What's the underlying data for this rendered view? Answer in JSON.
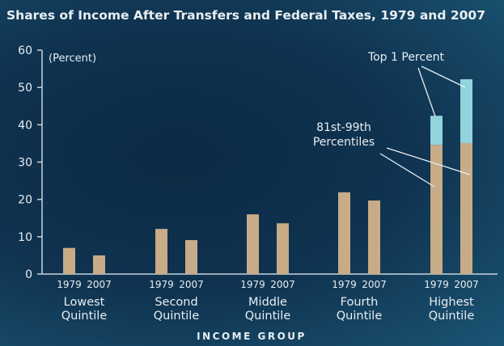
{
  "chart_data": {
    "type": "bar",
    "stacked": true,
    "title": "Shares of Income After Transfers and Federal Taxes, 1979 and 2007",
    "ylabel": "(Percent)",
    "xlabel": "INCOME GROUP",
    "ylim": [
      0,
      60
    ],
    "yticks": [
      "0",
      "10",
      "20",
      "30",
      "40",
      "50",
      "60"
    ],
    "grid": false,
    "groups": [
      {
        "label": [
          "Lowest",
          "Quintile"
        ],
        "bars": [
          {
            "year": "1979",
            "base": 7.0,
            "top": 0
          },
          {
            "year": "2007",
            "base": 5.0,
            "top": 0
          }
        ]
      },
      {
        "label": [
          "Second",
          "Quintile"
        ],
        "bars": [
          {
            "year": "1979",
            "base": 12.1,
            "top": 0
          },
          {
            "year": "2007",
            "base": 9.1,
            "top": 0
          }
        ]
      },
      {
        "label": [
          "Middle",
          "Quintile"
        ],
        "bars": [
          {
            "year": "1979",
            "base": 16.0,
            "top": 0
          },
          {
            "year": "2007",
            "base": 13.6,
            "top": 0
          }
        ]
      },
      {
        "label": [
          "Fourth",
          "Quintile"
        ],
        "bars": [
          {
            "year": "1979",
            "base": 21.9,
            "top": 0
          },
          {
            "year": "2007",
            "base": 19.7,
            "top": 0
          }
        ]
      },
      {
        "label": [
          "Highest",
          "Quintile"
        ],
        "bars": [
          {
            "year": "1979",
            "base": 34.6,
            "top": 7.8
          },
          {
            "year": "2007",
            "base": 35.1,
            "top": 17.1
          }
        ]
      }
    ],
    "annotations": {
      "top1": "Top 1 Percent",
      "p81_99": [
        "81st-99th",
        "Percentiles"
      ]
    },
    "colors": {
      "base": "#c8ab87",
      "top": "#92d3dc",
      "axis": "#c9d3da",
      "text": "#e8eef2"
    }
  }
}
